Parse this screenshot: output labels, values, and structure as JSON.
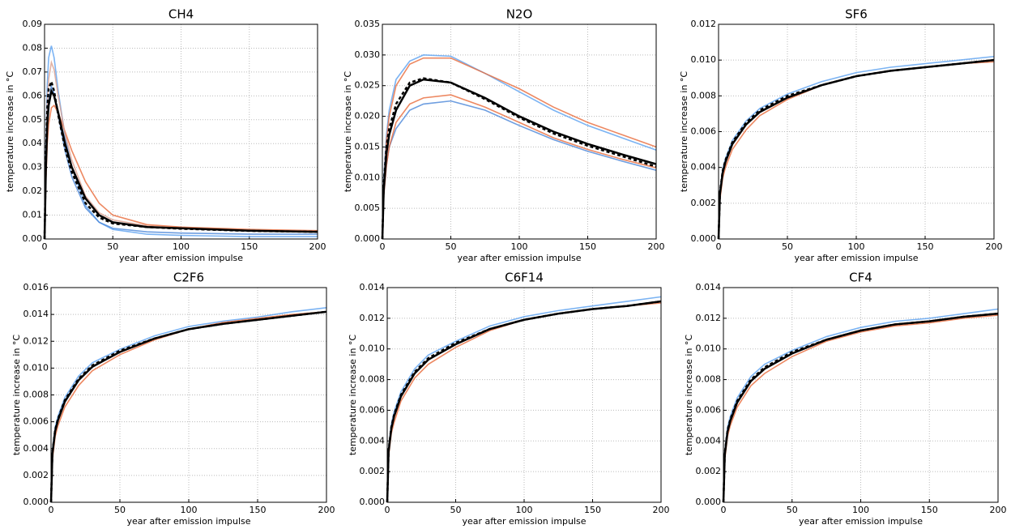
{
  "chart_data": [
    {
      "type": "line",
      "title": "CH4",
      "xlabel": "year after emission impulse",
      "ylabel": "temperature increase in °C",
      "xlim": [
        0,
        200
      ],
      "ylim": [
        0,
        0.09
      ],
      "xticks": [
        0,
        50,
        100,
        150,
        200
      ],
      "yticks": [
        {
          "value": 0,
          "label": "0.00"
        },
        0.01,
        0.02,
        0.03,
        0.04,
        0.05,
        0.06,
        0.07,
        0.08,
        0.09
      ],
      "grid": true,
      "x": [
        0,
        1,
        2,
        3,
        5,
        7,
        10,
        15,
        20,
        30,
        40,
        50,
        75,
        100,
        150,
        200
      ],
      "series": [
        {
          "color": "#5aa0f0",
          "values": [
            0,
            0.04,
            0.065,
            0.076,
            0.081,
            0.076,
            0.062,
            0.043,
            0.03,
            0.014,
            0.007,
            0.004,
            0.002,
            0.0015,
            0.001,
            0.001
          ]
        },
        {
          "color": "#4a86d8",
          "values": [
            0,
            0.03,
            0.05,
            0.058,
            0.064,
            0.061,
            0.052,
            0.037,
            0.026,
            0.013,
            0.007,
            0.0045,
            0.003,
            0.0025,
            0.002,
            0.002
          ]
        },
        {
          "color": "#e86a3a",
          "values": [
            0,
            0.025,
            0.04,
            0.048,
            0.055,
            0.056,
            0.053,
            0.045,
            0.037,
            0.024,
            0.015,
            0.01,
            0.006,
            0.005,
            0.004,
            0.0035
          ]
        },
        {
          "color": "#d9a090",
          "values": [
            0,
            0.035,
            0.057,
            0.067,
            0.074,
            0.071,
            0.06,
            0.044,
            0.033,
            0.018,
            0.011,
            0.008,
            0.0055,
            0.0045,
            0.0035,
            0.003
          ]
        },
        {
          "color": "#000000",
          "linestyle": "solid",
          "values": [
            0,
            0.03,
            0.048,
            0.056,
            0.062,
            0.06,
            0.053,
            0.04,
            0.03,
            0.017,
            0.01,
            0.007,
            0.005,
            0.0045,
            0.0035,
            0.003
          ]
        },
        {
          "color": "#000000",
          "linestyle": "dashed",
          "values": [
            0,
            0.035,
            0.055,
            0.063,
            0.066,
            0.062,
            0.052,
            0.038,
            0.028,
            0.015,
            0.009,
            0.0065,
            0.005,
            0.0043,
            0.0034,
            0.003
          ]
        }
      ]
    },
    {
      "type": "line",
      "title": "N2O",
      "xlabel": "year after emission impulse",
      "ylabel": "temperature increase in °C",
      "xlim": [
        0,
        200
      ],
      "ylim": [
        0,
        0.035
      ],
      "xticks": [
        0,
        50,
        100,
        150,
        200
      ],
      "yticks": [
        {
          "value": 0,
          "label": "0.000"
        },
        0.005,
        {
          "value": 0.01,
          "label": "0.010"
        },
        0.015,
        {
          "value": 0.02,
          "label": "0.020"
        },
        0.025,
        {
          "value": 0.03,
          "label": "0.030"
        },
        0.035
      ],
      "grid": true,
      "x": [
        0,
        1,
        3,
        5,
        10,
        20,
        30,
        50,
        75,
        100,
        125,
        150,
        175,
        200
      ],
      "series": [
        {
          "color": "#5aa0f0",
          "values": [
            0,
            0.01,
            0.017,
            0.021,
            0.026,
            0.029,
            0.03,
            0.0298,
            0.027,
            0.024,
            0.021,
            0.0185,
            0.0165,
            0.0145
          ]
        },
        {
          "color": "#e86a3a",
          "values": [
            0,
            0.009,
            0.016,
            0.02,
            0.025,
            0.0285,
            0.0295,
            0.0295,
            0.027,
            0.0245,
            0.0215,
            0.019,
            0.017,
            0.015
          ]
        },
        {
          "color": "#4a86d8",
          "values": [
            0,
            0.007,
            0.012,
            0.015,
            0.018,
            0.021,
            0.022,
            0.0225,
            0.021,
            0.0185,
            0.0162,
            0.0143,
            0.0127,
            0.0112
          ]
        },
        {
          "color": "#e86a3a",
          "values": [
            0,
            0.007,
            0.012,
            0.015,
            0.019,
            0.022,
            0.023,
            0.0235,
            0.0215,
            0.019,
            0.0165,
            0.0146,
            0.013,
            0.0116
          ]
        },
        {
          "color": "#000000",
          "linestyle": "solid",
          "values": [
            0,
            0.008,
            0.014,
            0.017,
            0.021,
            0.025,
            0.026,
            0.0255,
            0.023,
            0.02,
            0.0175,
            0.0155,
            0.0138,
            0.0122
          ]
        },
        {
          "color": "#000000",
          "linestyle": "dashed",
          "values": [
            0,
            0.009,
            0.015,
            0.018,
            0.022,
            0.0255,
            0.0262,
            0.0255,
            0.0228,
            0.0198,
            0.0172,
            0.0152,
            0.0135,
            0.0118
          ]
        }
      ]
    },
    {
      "type": "line",
      "title": "SF6",
      "xlabel": "year after emission impulse",
      "ylabel": "temperature increase in °C",
      "xlim": [
        0,
        200
      ],
      "ylim": [
        0,
        0.012
      ],
      "xticks": [
        0,
        50,
        100,
        150,
        200
      ],
      "yticks": [
        {
          "value": 0,
          "label": "0.000"
        },
        0.002,
        0.004,
        0.006,
        0.008,
        {
          "value": 0.01,
          "label": "0.010"
        },
        0.012
      ],
      "grid": true,
      "x": [
        0,
        1,
        3,
        5,
        10,
        20,
        30,
        50,
        75,
        100,
        125,
        150,
        175,
        200
      ],
      "series": [
        {
          "color": "#5aa0f0",
          "values": [
            0,
            0.0027,
            0.0039,
            0.0045,
            0.0055,
            0.0066,
            0.0073,
            0.0081,
            0.0088,
            0.0093,
            0.0096,
            0.0098,
            0.01,
            0.0102
          ]
        },
        {
          "color": "#e86a3a",
          "values": [
            0,
            0.0022,
            0.0034,
            0.004,
            0.005,
            0.0061,
            0.0069,
            0.0078,
            0.0086,
            0.0091,
            0.0094,
            0.0096,
            0.0098,
            0.0099
          ]
        },
        {
          "color": "#000000",
          "linestyle": "solid",
          "values": [
            0,
            0.0025,
            0.0037,
            0.0043,
            0.0053,
            0.0064,
            0.0071,
            0.0079,
            0.0086,
            0.0091,
            0.0094,
            0.0096,
            0.0098,
            0.01
          ]
        },
        {
          "color": "#000000",
          "linestyle": "dashed",
          "values": [
            0,
            0.0026,
            0.0038,
            0.0044,
            0.0054,
            0.0065,
            0.0072,
            0.008,
            0.0086,
            0.0091,
            0.0094,
            0.0096,
            0.0098,
            0.01
          ]
        }
      ]
    },
    {
      "type": "line",
      "title": "C2F6",
      "xlabel": "year after emission impulse",
      "ylabel": "temperature increase in °C",
      "xlim": [
        0,
        200
      ],
      "ylim": [
        0,
        0.016
      ],
      "xticks": [
        0,
        50,
        100,
        150,
        200
      ],
      "yticks": [
        {
          "value": 0,
          "label": "0.000"
        },
        0.002,
        0.004,
        0.006,
        0.008,
        {
          "value": 0.01,
          "label": "0.010"
        },
        0.012,
        0.014,
        0.016
      ],
      "grid": true,
      "x": [
        0,
        1,
        3,
        5,
        10,
        20,
        30,
        50,
        75,
        100,
        125,
        150,
        175,
        200
      ],
      "series": [
        {
          "color": "#5aa0f0",
          "values": [
            0,
            0.0039,
            0.0056,
            0.0064,
            0.0078,
            0.0094,
            0.0104,
            0.0114,
            0.0124,
            0.0131,
            0.0135,
            0.0138,
            0.0142,
            0.0145
          ]
        },
        {
          "color": "#e86a3a",
          "values": [
            0,
            0.0032,
            0.0049,
            0.0057,
            0.0071,
            0.0087,
            0.0098,
            0.011,
            0.0121,
            0.0129,
            0.0134,
            0.0137,
            0.014,
            0.0142
          ]
        },
        {
          "color": "#000000",
          "linestyle": "solid",
          "values": [
            0,
            0.0036,
            0.0053,
            0.0061,
            0.0075,
            0.0091,
            0.0101,
            0.0112,
            0.0122,
            0.0129,
            0.0133,
            0.0136,
            0.0139,
            0.0142
          ]
        },
        {
          "color": "#000000",
          "linestyle": "dashed",
          "values": [
            0,
            0.0037,
            0.0054,
            0.0062,
            0.0076,
            0.0092,
            0.0102,
            0.0113,
            0.0122,
            0.0129,
            0.0133,
            0.0136,
            0.0139,
            0.0142
          ]
        }
      ]
    },
    {
      "type": "line",
      "title": "C6F14",
      "xlabel": "year after emission impulse",
      "ylabel": "temperature increase in °C",
      "xlim": [
        0,
        200
      ],
      "ylim": [
        0,
        0.014
      ],
      "xticks": [
        0,
        50,
        100,
        150,
        200
      ],
      "yticks": [
        {
          "value": 0,
          "label": "0.000"
        },
        0.002,
        0.004,
        0.006,
        0.008,
        {
          "value": 0.01,
          "label": "0.010"
        },
        0.012,
        0.014
      ],
      "grid": true,
      "x": [
        0,
        1,
        3,
        5,
        10,
        20,
        30,
        50,
        75,
        100,
        125,
        150,
        175,
        200
      ],
      "series": [
        {
          "color": "#5aa0f0",
          "values": [
            0,
            0.0035,
            0.0051,
            0.0059,
            0.0072,
            0.0087,
            0.0096,
            0.0105,
            0.0115,
            0.0121,
            0.0125,
            0.0128,
            0.0131,
            0.0134
          ]
        },
        {
          "color": "#e86a3a",
          "values": [
            0,
            0.003,
            0.0045,
            0.0052,
            0.0066,
            0.0081,
            0.009,
            0.0101,
            0.0112,
            0.0119,
            0.0123,
            0.0126,
            0.0128,
            0.013
          ]
        },
        {
          "color": "#000000",
          "linestyle": "solid",
          "values": [
            0,
            0.0033,
            0.0048,
            0.0056,
            0.0069,
            0.0084,
            0.0093,
            0.0103,
            0.0113,
            0.0119,
            0.0123,
            0.0126,
            0.0128,
            0.0131
          ]
        },
        {
          "color": "#000000",
          "linestyle": "dashed",
          "values": [
            0,
            0.0034,
            0.0049,
            0.0057,
            0.007,
            0.0085,
            0.0094,
            0.0104,
            0.0113,
            0.0119,
            0.0123,
            0.0126,
            0.0128,
            0.0131
          ]
        }
      ]
    },
    {
      "type": "line",
      "title": "CF4",
      "xlabel": "year after emission impulse",
      "ylabel": "temperature increase in °C",
      "xlim": [
        0,
        200
      ],
      "ylim": [
        0,
        0.014
      ],
      "xticks": [
        0,
        50,
        100,
        150,
        200
      ],
      "yticks": [
        {
          "value": 0,
          "label": "0.000"
        },
        0.002,
        0.004,
        0.006,
        0.008,
        {
          "value": 0.01,
          "label": "0.010"
        },
        0.012,
        0.014
      ],
      "grid": true,
      "x": [
        0,
        1,
        3,
        5,
        10,
        20,
        30,
        50,
        75,
        100,
        125,
        150,
        175,
        200
      ],
      "series": [
        {
          "color": "#5aa0f0",
          "values": [
            0,
            0.0033,
            0.0049,
            0.0056,
            0.0068,
            0.0082,
            0.009,
            0.0099,
            0.0108,
            0.0114,
            0.0118,
            0.012,
            0.0123,
            0.0126
          ]
        },
        {
          "color": "#e86a3a",
          "values": [
            0,
            0.0028,
            0.0043,
            0.005,
            0.0062,
            0.0076,
            0.0084,
            0.0095,
            0.0105,
            0.0111,
            0.0115,
            0.0117,
            0.012,
            0.0122
          ]
        },
        {
          "color": "#000000",
          "linestyle": "solid",
          "values": [
            0,
            0.0031,
            0.0046,
            0.0053,
            0.0065,
            0.0079,
            0.0087,
            0.0097,
            0.0106,
            0.0112,
            0.0116,
            0.0118,
            0.0121,
            0.0123
          ]
        },
        {
          "color": "#000000",
          "linestyle": "dashed",
          "values": [
            0,
            0.0032,
            0.0047,
            0.0054,
            0.0066,
            0.008,
            0.0088,
            0.0098,
            0.0106,
            0.0112,
            0.0116,
            0.0118,
            0.0121,
            0.0123
          ]
        }
      ]
    }
  ]
}
